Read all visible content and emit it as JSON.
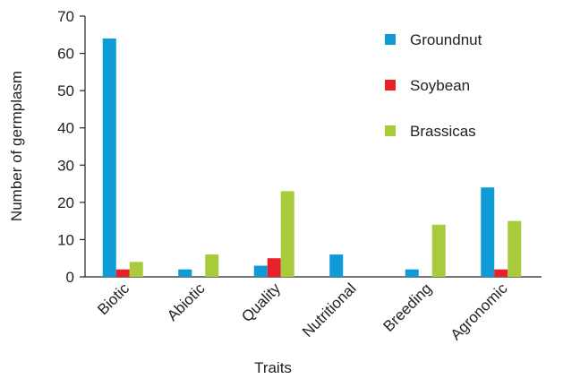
{
  "chart_data": {
    "type": "bar",
    "xlabel": "Traits",
    "ylabel": "Number of germplasm",
    "categories": [
      "Biotic",
      "Abiotic",
      "Quality",
      "Nutritional",
      "Breeding",
      "Agronomic"
    ],
    "series": [
      {
        "name": "Groundnut",
        "color": "#0f9ad8",
        "values": [
          64,
          2,
          3,
          6,
          2,
          24
        ]
      },
      {
        "name": "Soybean",
        "color": "#e8202a",
        "values": [
          2,
          0,
          5,
          0,
          0,
          2
        ]
      },
      {
        "name": "Brassicas",
        "color": "#a8cb3c",
        "values": [
          4,
          6,
          23,
          0,
          14,
          15
        ]
      }
    ],
    "ylim": [
      0,
      70
    ],
    "yticks": [
      0,
      10,
      20,
      30,
      40,
      50,
      60,
      70
    ],
    "grid": false,
    "legend": "upper right"
  }
}
